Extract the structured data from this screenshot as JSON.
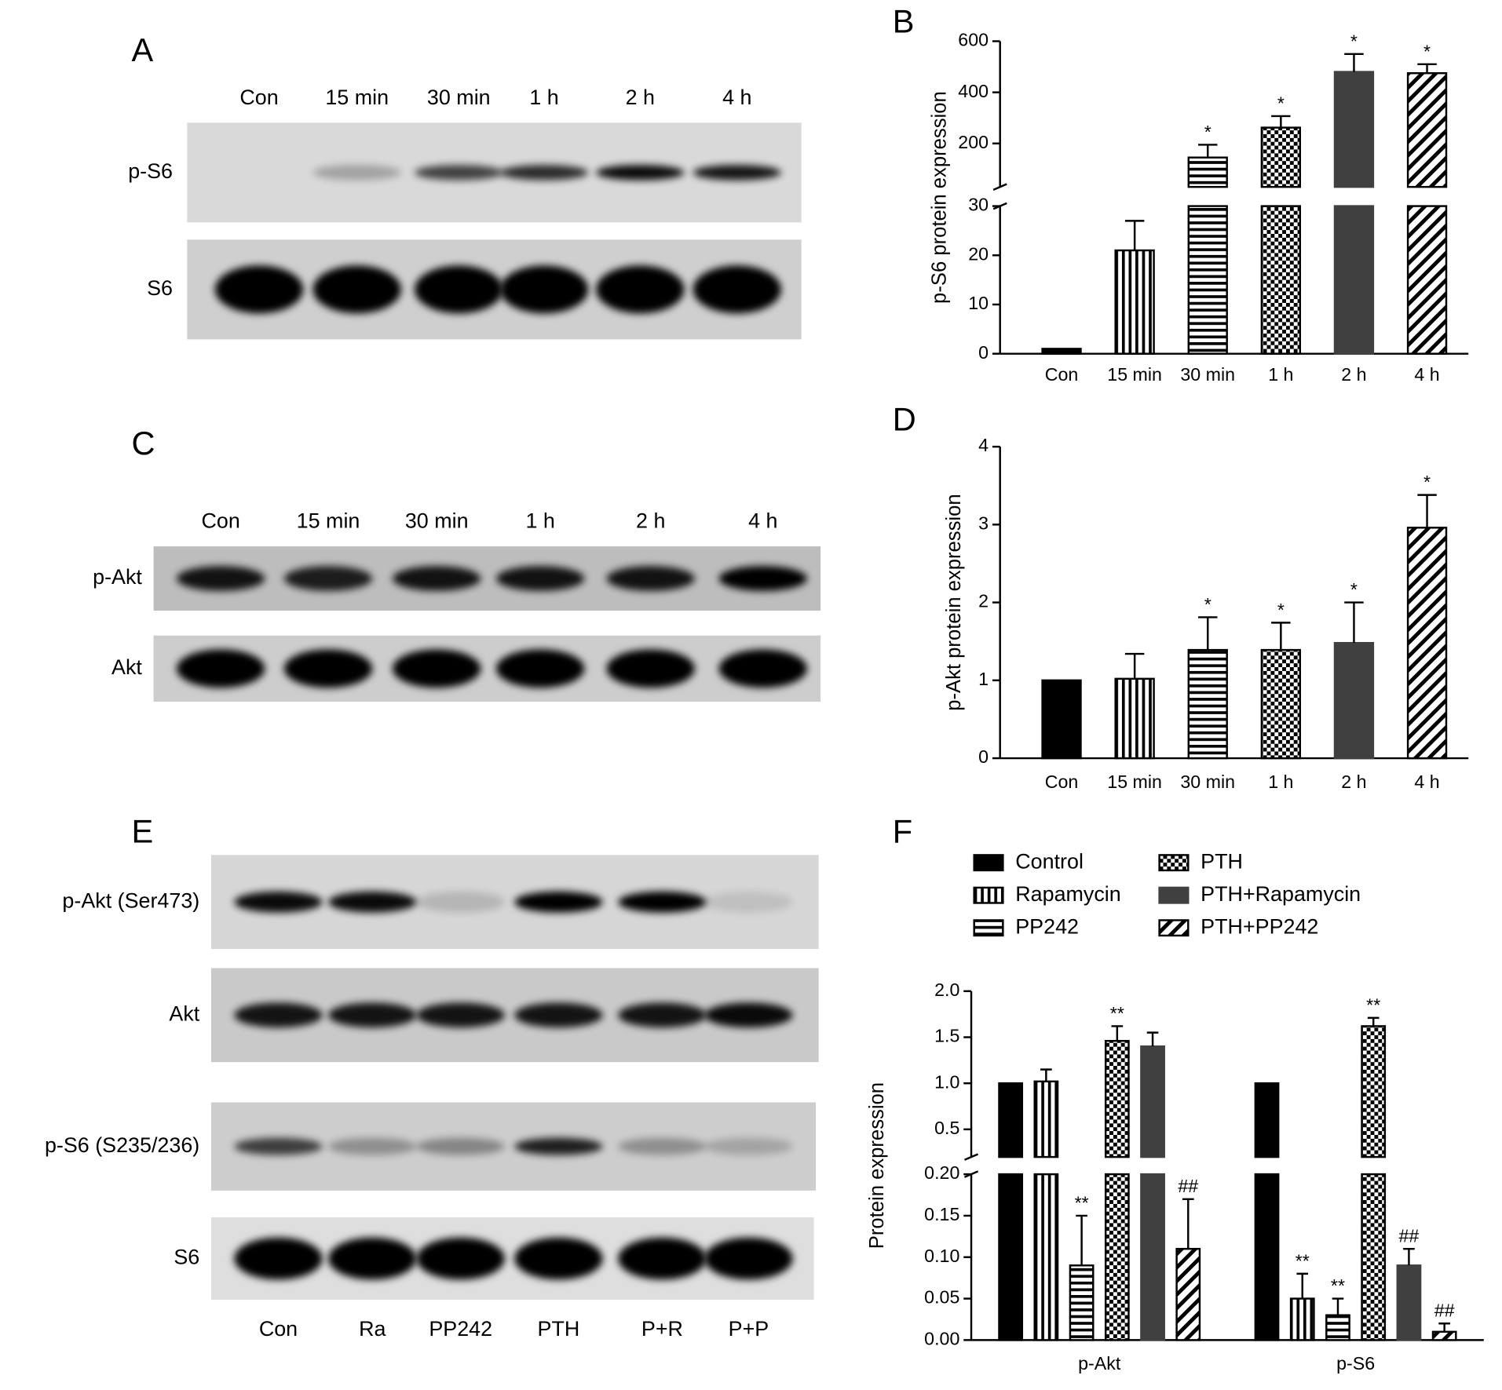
{
  "blots": [
    {
      "panel": "A",
      "lanes": [
        "Con",
        "15 min",
        "30 min",
        "1 h",
        "2 h",
        "4 h"
      ],
      "rows": [
        "p-S6",
        "S6"
      ]
    },
    {
      "panel": "C",
      "lanes": [
        "Con",
        "15 min",
        "30 min",
        "1 h",
        "2 h",
        "4 h"
      ],
      "rows": [
        "p-Akt",
        "Akt"
      ]
    },
    {
      "panel": "E",
      "lanes": [
        "Con",
        "Ra",
        "PP242",
        "PTH",
        "P+R",
        "P+P"
      ],
      "rows": [
        "p-Akt (Ser473)",
        "Akt",
        "p-S6 (S235/236)",
        "S6"
      ]
    }
  ],
  "chart_data": [
    {
      "type": "bar",
      "panel": "B",
      "ylabel": "p-S6 protein expression",
      "categories": [
        "Con",
        "15 min",
        "30 min",
        "1 h",
        "2 h",
        "4 h"
      ],
      "values": [
        1,
        21,
        145,
        262,
        480,
        475
      ],
      "errors": [
        null,
        6,
        50,
        45,
        70,
        35
      ],
      "markers": [
        null,
        null,
        "*",
        "*",
        "*",
        "*"
      ],
      "patterns": [
        "solid",
        "vertical",
        "horizontal",
        "checker",
        "solid",
        "diagonal"
      ],
      "colors": [
        "#000000",
        "#000000",
        "#000000",
        "#000000",
        "#404040",
        "#000000"
      ],
      "ysegments": [
        {
          "ylim": [
            0,
            30
          ],
          "yticks": [
            0,
            10,
            20,
            30
          ]
        },
        {
          "ylim": [
            30,
            600
          ],
          "yticks": [
            200,
            400,
            600
          ]
        }
      ]
    },
    {
      "type": "bar",
      "panel": "D",
      "ylabel": "p-Akt protein expression",
      "categories": [
        "Con",
        "15 min",
        "30 min",
        "1 h",
        "2 h",
        "4 h"
      ],
      "values": [
        1.0,
        1.02,
        1.39,
        1.39,
        1.48,
        2.96
      ],
      "errors": [
        null,
        0.32,
        0.42,
        0.35,
        0.52,
        0.42
      ],
      "markers": [
        null,
        null,
        "*",
        "*",
        "*",
        "*"
      ],
      "patterns": [
        "solid",
        "vertical",
        "horizontal",
        "checker",
        "solid",
        "diagonal"
      ],
      "colors": [
        "#000000",
        "#000000",
        "#000000",
        "#000000",
        "#404040",
        "#000000"
      ],
      "ysegments": [
        {
          "ylim": [
            0,
            4
          ],
          "yticks": [
            0,
            1,
            2,
            3,
            4
          ]
        }
      ]
    },
    {
      "type": "grouped_bar",
      "panel": "F",
      "ylabel": "Protein expression",
      "legend": "top",
      "categories": [
        "p-Akt",
        "p-S6"
      ],
      "series": [
        {
          "name": "Control",
          "color": "#000000",
          "pattern": "solid",
          "values": [
            1.0,
            1.0
          ],
          "errors": [
            null,
            null
          ],
          "markers": [
            null,
            null
          ]
        },
        {
          "name": "Rapamycin",
          "color": "#000000",
          "pattern": "vertical",
          "values": [
            1.02,
            0.05
          ],
          "errors": [
            0.13,
            0.03
          ],
          "markers": [
            null,
            "**"
          ]
        },
        {
          "name": "PP242",
          "color": "#000000",
          "pattern": "horizontal",
          "values": [
            0.09,
            0.03
          ],
          "errors": [
            0.06,
            0.02
          ],
          "markers": [
            "**",
            "**"
          ]
        },
        {
          "name": "PTH",
          "color": "#000000",
          "pattern": "checker",
          "values": [
            1.46,
            1.62
          ],
          "errors": [
            0.16,
            0.09
          ],
          "markers": [
            "**",
            "**"
          ]
        },
        {
          "name": "PTH+Rapamycin",
          "color": "#404040",
          "pattern": "solid",
          "values": [
            1.4,
            0.09
          ],
          "errors": [
            0.15,
            0.02
          ],
          "markers": [
            null,
            "##"
          ]
        },
        {
          "name": "PTH+PP242",
          "color": "#000000",
          "pattern": "diagonal",
          "values": [
            0.11,
            0.01
          ],
          "errors": [
            0.06,
            0.01
          ],
          "markers": [
            "##",
            "##"
          ]
        }
      ],
      "ysegments": [
        {
          "ylim": [
            0,
            0.2
          ],
          "yticks": [
            {
              "value": 0,
              "label": "0.00"
            },
            0.05,
            {
              "value": 0.1,
              "label": "0.10"
            },
            0.15,
            {
              "value": 0.2,
              "label": "0.20"
            }
          ]
        },
        {
          "ylim": [
            0.2,
            2.0
          ],
          "yticks": [
            0.5,
            {
              "value": 1,
              "label": "1.0"
            },
            1.5,
            {
              "value": 2,
              "label": "2.0"
            }
          ]
        }
      ]
    }
  ]
}
